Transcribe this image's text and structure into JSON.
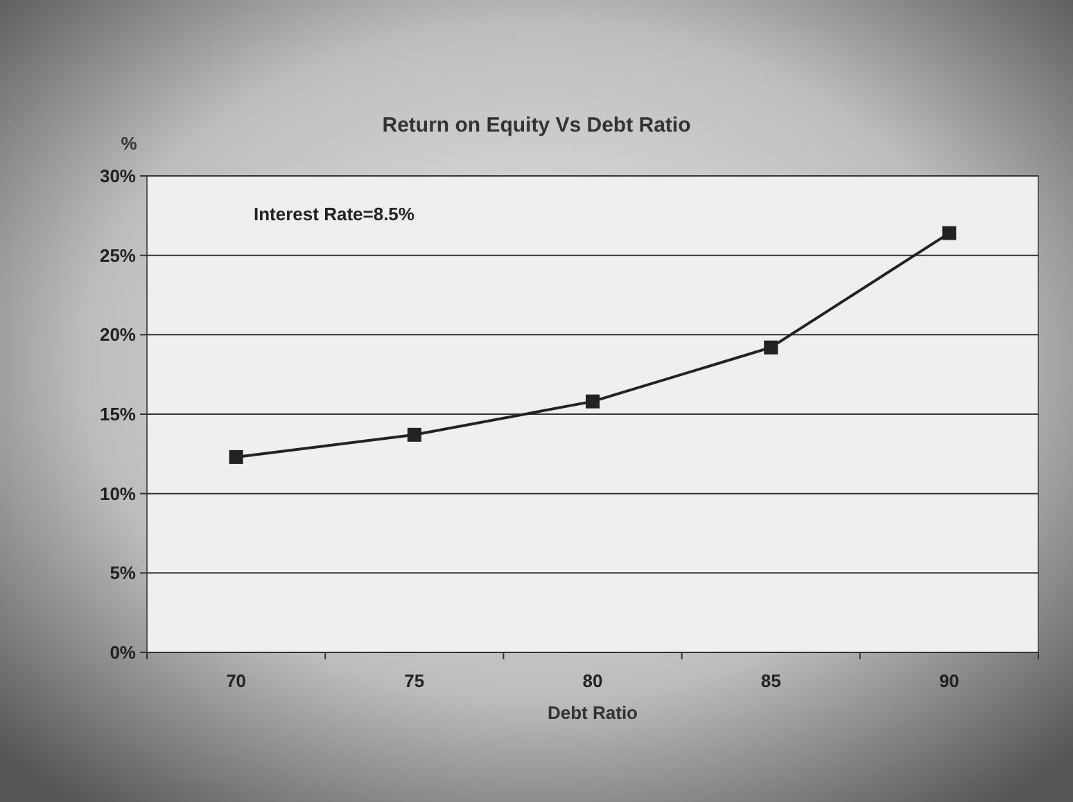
{
  "chart_data": {
    "type": "line",
    "title": "Return on Equity Vs Debt Ratio",
    "xlabel": "Debt Ratio",
    "ylabel": "%",
    "annotations": [
      "Interest Rate=8.5%"
    ],
    "categories": [
      "70",
      "75",
      "80",
      "85",
      "90"
    ],
    "series": [
      {
        "color": "#222222",
        "values": [
          12.3,
          13.7,
          15.8,
          19.2,
          26.4
        ]
      }
    ],
    "ylim": [
      0,
      30
    ],
    "yticks": [
      {
        "value": 0,
        "label": "0%"
      },
      {
        "value": 5,
        "label": "5%"
      },
      {
        "value": 10,
        "label": "10%"
      },
      {
        "value": 15,
        "label": "15%"
      },
      {
        "value": 20,
        "label": "20%"
      },
      {
        "value": 25,
        "label": "25%"
      },
      {
        "value": 30,
        "label": "30%"
      }
    ],
    "grid": "y",
    "marker": "square",
    "line_style": "solid"
  }
}
